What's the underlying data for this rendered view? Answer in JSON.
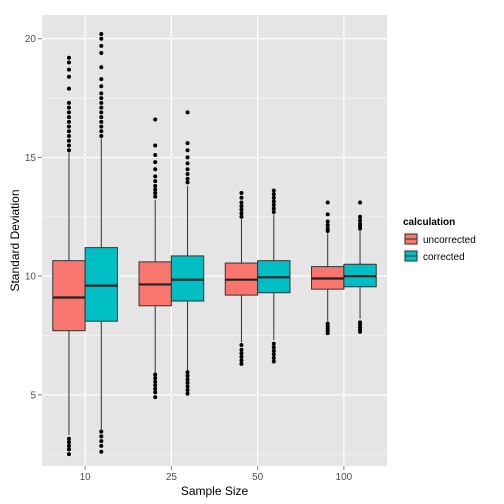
{
  "chart_data": {
    "type": "boxplot",
    "title": "",
    "xlabel": "Sample Size",
    "ylabel": "Standard Deviation",
    "categories": [
      "10",
      "25",
      "50",
      "100"
    ],
    "ylim": [
      2,
      21
    ],
    "yticks": [
      5,
      10,
      15,
      20
    ],
    "grid": true,
    "legend": {
      "title": "calculation",
      "position": "right"
    },
    "series": [
      {
        "name": "uncorrected",
        "color": "#f8766d",
        "boxes": [
          {
            "q1": 7.7,
            "median": 9.1,
            "q3": 10.65,
            "whisker_low": 3.3,
            "whisker_high": 15.2,
            "outliers": [
              2.5,
              2.7,
              2.85,
              3.0,
              3.15,
              15.3,
              15.5,
              15.7,
              15.9,
              16.1,
              16.3,
              16.5,
              16.7,
              16.9,
              17.1,
              17.3,
              17.9,
              18.4,
              18.7,
              19.0,
              19.2
            ]
          },
          {
            "q1": 8.75,
            "median": 9.65,
            "q3": 10.6,
            "whisker_low": 5.9,
            "whisker_high": 13.2,
            "outliers": [
              4.9,
              5.1,
              5.25,
              5.4,
              5.55,
              5.7,
              5.85,
              13.35,
              13.5,
              13.65,
              13.8,
              14.0,
              14.2,
              14.5,
              14.8,
              15.1,
              15.5,
              16.6
            ]
          },
          {
            "q1": 9.2,
            "median": 9.85,
            "q3": 10.55,
            "whisker_low": 7.2,
            "whisker_high": 12.4,
            "outliers": [
              6.3,
              6.45,
              6.6,
              6.75,
              6.9,
              7.1,
              12.5,
              12.65,
              12.8,
              12.95,
              13.1,
              13.3,
              13.5
            ]
          },
          {
            "q1": 9.45,
            "median": 9.9,
            "q3": 10.4,
            "whisker_low": 8.1,
            "whisker_high": 11.8,
            "outliers": [
              7.6,
              7.7,
              7.8,
              7.9,
              8.0,
              11.9,
              12.0,
              12.15,
              12.3,
              12.6,
              13.1
            ]
          }
        ]
      },
      {
        "name": "corrected",
        "color": "#00bfc4",
        "boxes": [
          {
            "q1": 8.1,
            "median": 9.6,
            "q3": 11.2,
            "whisker_low": 3.5,
            "whisker_high": 15.8,
            "outliers": [
              2.6,
              2.85,
              3.05,
              3.25,
              3.45,
              15.9,
              16.1,
              16.3,
              16.5,
              16.7,
              16.9,
              17.1,
              17.3,
              17.5,
              17.7,
              18.0,
              18.3,
              18.8,
              19.4,
              19.7,
              20.0,
              20.2
            ]
          },
          {
            "q1": 8.95,
            "median": 9.85,
            "q3": 10.85,
            "whisker_low": 6.0,
            "whisker_high": 13.8,
            "outliers": [
              5.05,
              5.2,
              5.35,
              5.5,
              5.65,
              5.8,
              5.95,
              13.95,
              14.1,
              14.3,
              14.5,
              14.75,
              15.0,
              15.3,
              15.6,
              16.9
            ]
          },
          {
            "q1": 9.3,
            "median": 9.95,
            "q3": 10.65,
            "whisker_low": 7.3,
            "whisker_high": 12.6,
            "outliers": [
              6.4,
              6.55,
              6.7,
              6.85,
              7.0,
              7.15,
              12.7,
              12.85,
              13.0,
              13.15,
              13.3,
              13.45,
              13.6
            ]
          },
          {
            "q1": 9.55,
            "median": 10.0,
            "q3": 10.5,
            "whisker_low": 8.2,
            "whisker_high": 11.9,
            "outliers": [
              7.65,
              7.75,
              7.85,
              7.95,
              8.05,
              12.0,
              12.1,
              12.2,
              12.35,
              12.5,
              13.1
            ]
          }
        ]
      }
    ]
  }
}
